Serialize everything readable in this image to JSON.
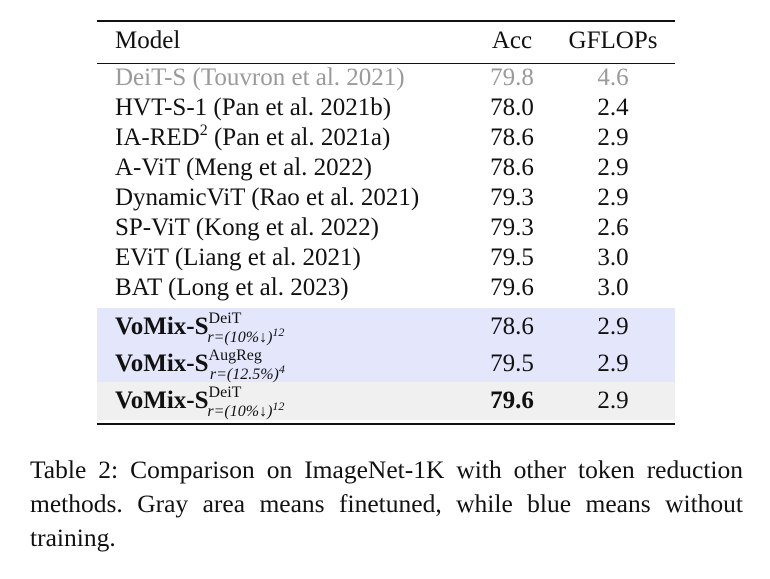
{
  "table": {
    "headers": {
      "model": "Model",
      "acc": "Acc",
      "gflops": "GFLOPs"
    },
    "rows": [
      {
        "model": "DeiT-S (Touvron et al. 2021)",
        "acc": "79.8",
        "gflops": "4.6"
      },
      {
        "model": "HVT-S-1 (Pan et al. 2021b)",
        "acc": "78.0",
        "gflops": "2.4"
      },
      {
        "model_prefix": "IA-RED",
        "model_sup": "2",
        "model_suffix": " (Pan et al. 2021a)",
        "acc": "78.6",
        "gflops": "2.9"
      },
      {
        "model": "A-ViT (Meng et al. 2022)",
        "acc": "78.6",
        "gflops": "2.9"
      },
      {
        "model": "DynamicViT (Rao et al. 2021)",
        "acc": "79.3",
        "gflops": "2.9"
      },
      {
        "model": "SP-ViT (Kong et al. 2022)",
        "acc": "79.3",
        "gflops": "2.6"
      },
      {
        "model": "EViT (Liang et al. 2021)",
        "acc": "79.5",
        "gflops": "3.0"
      },
      {
        "model": "BAT (Long et al. 2023)",
        "acc": "79.6",
        "gflops": "3.0"
      },
      {
        "model_main": "VoMix-S",
        "model_sup": "DeiT",
        "model_sub_a": "r=(10%",
        "model_sub_arrow": "↓",
        "model_sub_b": ")",
        "model_sub_exp": "12",
        "acc": "78.6",
        "gflops": "2.9"
      },
      {
        "model_main": "VoMix-S",
        "model_sup": "AugReg",
        "model_sub_a": "r=(12.5%)",
        "model_sub_exp": "4",
        "acc": "79.5",
        "gflops": "2.9"
      },
      {
        "model_main": "VoMix-S",
        "model_sup": "DeiT",
        "model_sub_a": "r=(10%",
        "model_sub_arrow": "↓",
        "model_sub_b": ")",
        "model_sub_exp": "12",
        "acc": "79.6",
        "gflops": "2.9"
      }
    ]
  },
  "caption": "Table 2: Comparison on ImageNet-1K with other token reduction methods. Gray area means finetuned, while blue means without training.",
  "colors": {
    "blue_region": "#e4e7fb",
    "gray_region": "#f0f0f0",
    "dim_text": "#9a9a9a"
  }
}
